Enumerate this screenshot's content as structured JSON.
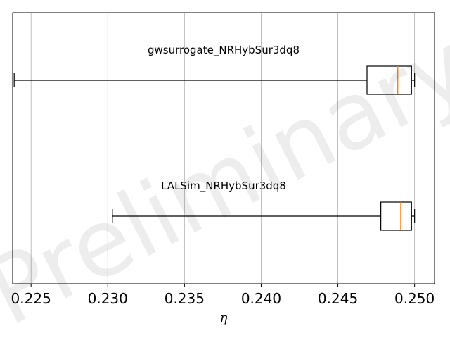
{
  "chart_data": {
    "type": "boxplot",
    "orientation": "horizontal",
    "xlabel": "η",
    "xlim": [
      0.2238,
      0.2513
    ],
    "xticks": [
      "0.225",
      "0.230",
      "0.235",
      "0.240",
      "0.245",
      "0.250"
    ],
    "grid": "vertical",
    "watermark": "Preliminary",
    "colors": {
      "median": "#ff7f0e",
      "box": "#000000",
      "grid": "#b0b0b0"
    },
    "series": [
      {
        "name": "gwsurrogate_NRHybSur3dq8",
        "whisker_low": 0.2239,
        "q1": 0.2469,
        "median": 0.2489,
        "q3": 0.2498,
        "whisker_high": 0.25
      },
      {
        "name": "LALSim_NRHybSur3dq8",
        "whisker_low": 0.2303,
        "q1": 0.2478,
        "median": 0.2491,
        "q3": 0.2498,
        "whisker_high": 0.25
      }
    ]
  }
}
